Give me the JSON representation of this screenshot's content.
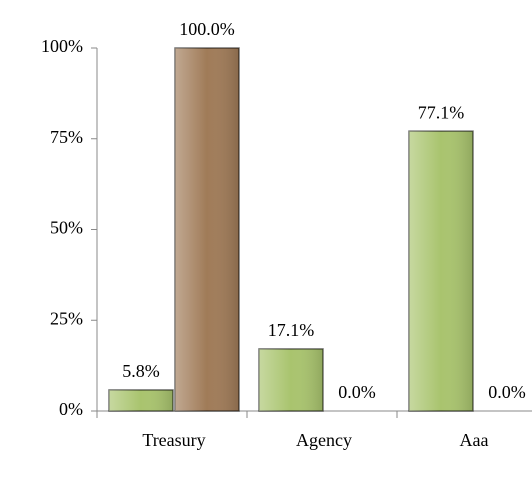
{
  "chart_data": {
    "type": "bar",
    "categories": [
      "Treasury",
      "Agency",
      "Aaa"
    ],
    "series": [
      {
        "color": "#a9c46e",
        "values": [
          5.8,
          17.1,
          77.1
        ],
        "value_labels": [
          "5.8%",
          "17.1%",
          "77.1%"
        ]
      },
      {
        "color": "#a07b58",
        "values": [
          100.0,
          0.0,
          0.0
        ],
        "value_labels": [
          "100.0%",
          "0.0%",
          "0.0%"
        ]
      }
    ],
    "ylim": [
      0,
      100
    ],
    "yticks": [
      {
        "value": 0,
        "label": "0%"
      },
      {
        "value": 25,
        "label": "25%"
      },
      {
        "value": 50,
        "label": "50%"
      },
      {
        "value": 75,
        "label": "75%"
      },
      {
        "value": 100,
        "label": "100%"
      }
    ]
  }
}
